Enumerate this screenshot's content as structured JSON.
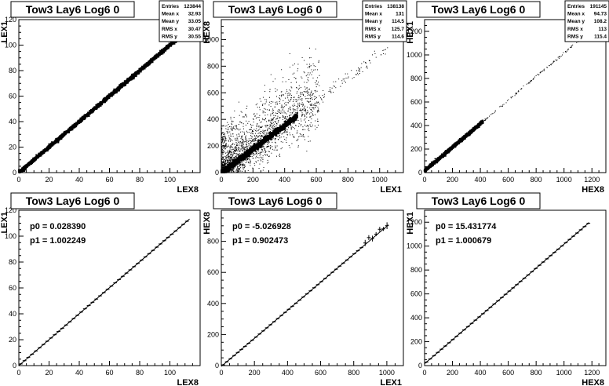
{
  "panel_title": "Tow3 Lay6 Log6 0",
  "chart_data": [
    {
      "type": "scatter",
      "title": "Tow3 Lay6 Log6 0",
      "xlabel": "LEX8",
      "ylabel": "LEX1",
      "xlim": [
        0,
        120
      ],
      "ylim": [
        0,
        120
      ],
      "xticks": [
        0,
        20,
        40,
        60,
        80,
        100
      ],
      "yticks": [
        0,
        20,
        40,
        60,
        80,
        100,
        120
      ],
      "stats": [
        [
          "Entries",
          "123844"
        ],
        [
          "Mean x",
          "32.93"
        ],
        [
          "Mean y",
          "33.05"
        ],
        [
          "RMS x",
          "30.47"
        ],
        [
          "RMS y",
          "30.55"
        ]
      ],
      "relation": {
        "slope": 1.0,
        "intercept": 0.0,
        "xmax": 110
      }
    },
    {
      "type": "scatter",
      "title": "Tow3 Lay6 Log6 0",
      "xlabel": "LEX1",
      "ylabel": "HEX8",
      "xlim": [
        0,
        1150
      ],
      "ylim": [
        0,
        1150
      ],
      "xticks": [
        0,
        200,
        400,
        600,
        800,
        1000
      ],
      "yticks": [
        0,
        200,
        400,
        600,
        800,
        1000
      ],
      "stats": [
        [
          "Entries",
          "138138"
        ],
        [
          "Mean x",
          "131"
        ],
        [
          "Mean y",
          "114.5"
        ],
        [
          "RMS x",
          "125.7"
        ],
        [
          "RMS y",
          "114.6"
        ]
      ],
      "relation": {
        "slope": 0.9,
        "intercept": -5.0,
        "xmax": 1000
      }
    },
    {
      "type": "scatter",
      "title": "Tow3 Lay6 Log6 0",
      "xlabel": "HEX8",
      "ylabel": "HEX1",
      "xlim": [
        0,
        1300
      ],
      "ylim": [
        0,
        1300
      ],
      "xticks": [
        0,
        200,
        400,
        600,
        800,
        1000,
        1200
      ],
      "yticks": [
        0,
        200,
        400,
        600,
        800,
        1000,
        1200
      ],
      "stats": [
        [
          "Entries",
          "191145"
        ],
        [
          "Mean x",
          "94.73"
        ],
        [
          "Mean y",
          "108.2"
        ],
        [
          "RMS x",
          "113"
        ],
        [
          "RMS y",
          "115.4"
        ]
      ],
      "relation": {
        "slope": 1.0,
        "intercept": 15.0,
        "xmax": 1150
      }
    },
    {
      "type": "line",
      "title": "Tow3 Lay6 Log6 0",
      "xlabel": "LEX8",
      "ylabel": "LEX1",
      "xlim": [
        0,
        120
      ],
      "ylim": [
        0,
        120
      ],
      "xticks": [
        0,
        20,
        40,
        60,
        80,
        100
      ],
      "yticks": [
        0,
        20,
        40,
        60,
        80,
        100,
        120
      ],
      "fit": [
        "p0 = 0.028390",
        "p1 = 1.002249"
      ],
      "relation": {
        "slope": 1.002249,
        "intercept": 0.02839,
        "xmin": 0,
        "xmax": 113,
        "step": 2.5
      }
    },
    {
      "type": "line",
      "title": "Tow3 Lay6 Log6 0",
      "xlabel": "LEX1",
      "ylabel": "HEX8",
      "xlim": [
        0,
        1100
      ],
      "ylim": [
        0,
        1000
      ],
      "xticks": [
        0,
        200,
        400,
        600,
        800,
        1000
      ],
      "yticks": [
        0,
        200,
        400,
        600,
        800
      ],
      "fit": [
        "p0 = -5.026928",
        "p1 = 0.902473"
      ],
      "relation": {
        "slope": 0.902473,
        "intercept": -5.026928,
        "xmin": 0,
        "xmax": 1010,
        "step": 22
      }
    },
    {
      "type": "line",
      "title": "Tow3 Lay6 Log6 0",
      "xlabel": "HEX8",
      "ylabel": "HEX1",
      "xlim": [
        0,
        1300
      ],
      "ylim": [
        0,
        1300
      ],
      "xticks": [
        0,
        200,
        400,
        600,
        800,
        1000,
        1200
      ],
      "yticks": [
        0,
        200,
        400,
        600,
        800,
        1000,
        1200
      ],
      "fit": [
        "p0 = 15.431774",
        "p1 = 1.000679"
      ],
      "relation": {
        "slope": 1.000679,
        "intercept": 15.431774,
        "xmin": 0,
        "xmax": 1180,
        "step": 27
      }
    }
  ]
}
